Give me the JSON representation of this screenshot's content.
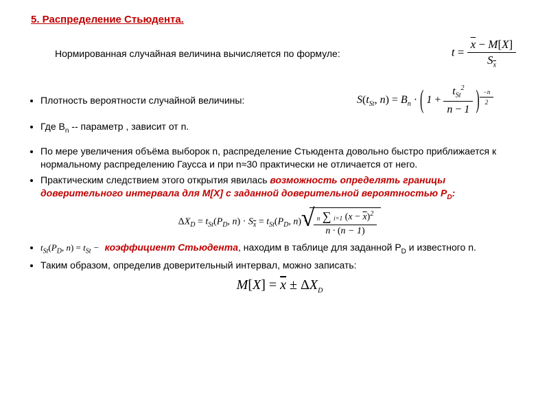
{
  "title": "5. Распределение Стьюдента.",
  "intro": "Нормированная случайная величина вычисляется по формуле:",
  "bullets": {
    "b1": "Плотность вероятности случайной величины:",
    "b2_a": "Где B",
    "b2_b": "  --  параметр , зависит от n.",
    "b3": "По мере увеличения объёма выборок n, распределение Стьюдента довольно быстро приближается к нормальному распределению Гаусса и при n≈30 практически не отличается от него.",
    "b4_a": "Практическим следствием этого открытия явилась ",
    "b4_b": "возможность определять границы доверительного интервала для M[X] с заданной доверительной вероятностью P",
    "b4_c": ":",
    "b5_b": "коэффициент Стьюдента",
    "b5_c": ", находим в таблице для заданной P",
    "b5_d": " и известного n.",
    "b6": "Таким образом, определив доверительный интервал, можно записать:"
  },
  "math": {
    "t_label": "t",
    "eq": " = ",
    "xbar": "x",
    "minus": " − ",
    "MX": "M",
    "lbr": "[",
    "rbr": "]",
    "X": "X",
    "S": "S",
    "St": "St",
    "Bn": "B",
    "n": "n",
    "one": "1",
    "plus": " + ",
    "minus_n_over2": "−n",
    "two": "2",
    "tsq": "2",
    "lparen": "(",
    "rparen": ")",
    "comma": ",",
    "dot": " ·",
    "Delta": "Δ",
    "D": "D",
    "P": "P",
    "i_eq_1": "i=1",
    "n_minus_1": "n − 1",
    "pm": " ± "
  },
  "colors": {
    "red": "#c00000"
  }
}
